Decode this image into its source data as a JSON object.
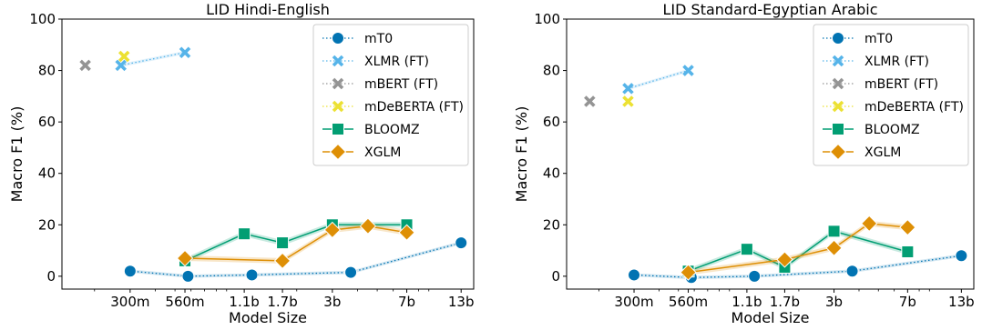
{
  "chart_data": [
    {
      "type": "line",
      "title": "LID Hindi-English",
      "xlabel": "Model Size",
      "ylabel": "Macro F1 (%)",
      "ylim": [
        0,
        100
      ],
      "yticks": [
        0,
        20,
        40,
        60,
        80,
        100
      ],
      "xticks": [
        "300m",
        "560m",
        "1.1b",
        "1.7b",
        "3b",
        "7b",
        "13b"
      ],
      "x_scale": "log",
      "grid": false,
      "legend_position": "top-right",
      "series": [
        {
          "name": "mT0",
          "color": "#0173b2",
          "marker": "circle",
          "style": "dotted",
          "points": [
            {
              "x": "300m",
              "y": 2
            },
            {
              "x": "580m",
              "y": 0
            },
            {
              "x": "1.2b",
              "y": 0.5
            },
            {
              "x": "3.7b",
              "y": 1.5
            },
            {
              "x": "13b",
              "y": 13
            }
          ]
        },
        {
          "name": "XLMR (FT)",
          "color": "#56b4e9",
          "marker": "x",
          "style": "dotted",
          "points": [
            {
              "x": "270m",
              "y": 82
            },
            {
              "x": "560m",
              "y": 87
            }
          ]
        },
        {
          "name": "mBERT (FT)",
          "color": "#949494",
          "marker": "x",
          "style": "none",
          "points": [
            {
              "x": "180m",
              "y": 82
            }
          ]
        },
        {
          "name": "mDeBERTA (FT)",
          "color": "#ece133",
          "marker": "x",
          "style": "none",
          "points": [
            {
              "x": "280m",
              "y": 85.5
            }
          ]
        },
        {
          "name": "BLOOMZ",
          "color": "#029e73",
          "marker": "square",
          "style": "solid",
          "points": [
            {
              "x": "560m",
              "y": 6
            },
            {
              "x": "1.1b",
              "y": 16.5
            },
            {
              "x": "1.7b",
              "y": 13
            },
            {
              "x": "3b",
              "y": 20
            },
            {
              "x": "7b",
              "y": 20
            }
          ]
        },
        {
          "name": "XGLM",
          "color": "#de8f05",
          "marker": "diamond",
          "style": "solid",
          "points": [
            {
              "x": "560m",
              "y": 7
            },
            {
              "x": "1.7b",
              "y": 6
            },
            {
              "x": "3b",
              "y": 18
            },
            {
              "x": "4.5b",
              "y": 19.5
            },
            {
              "x": "7b",
              "y": 17
            }
          ]
        }
      ]
    },
    {
      "type": "line",
      "title": "LID Standard-Egyptian Arabic",
      "xlabel": "Model Size",
      "ylabel": "Macro F1 (%)",
      "ylim": [
        0,
        100
      ],
      "yticks": [
        0,
        20,
        40,
        60,
        80,
        100
      ],
      "xticks": [
        "300m",
        "560m",
        "1.1b",
        "1.7b",
        "3b",
        "7b",
        "13b"
      ],
      "x_scale": "log",
      "grid": false,
      "legend_position": "top-right",
      "series": [
        {
          "name": "mT0",
          "color": "#0173b2",
          "marker": "circle",
          "style": "dotted",
          "points": [
            {
              "x": "300m",
              "y": 0.5
            },
            {
              "x": "580m",
              "y": -0.5
            },
            {
              "x": "1.2b",
              "y": 0
            },
            {
              "x": "3.7b",
              "y": 2
            },
            {
              "x": "13b",
              "y": 8
            }
          ]
        },
        {
          "name": "XLMR (FT)",
          "color": "#56b4e9",
          "marker": "x",
          "style": "dotted",
          "points": [
            {
              "x": "280m",
              "y": 73
            },
            {
              "x": "560m",
              "y": 80
            }
          ]
        },
        {
          "name": "mBERT (FT)",
          "color": "#949494",
          "marker": "x",
          "style": "none",
          "points": [
            {
              "x": "180m",
              "y": 68
            }
          ]
        },
        {
          "name": "mDeBERTA (FT)",
          "color": "#ece133",
          "marker": "x",
          "style": "none",
          "points": [
            {
              "x": "280m",
              "y": 68
            }
          ]
        },
        {
          "name": "BLOOMZ",
          "color": "#029e73",
          "marker": "square",
          "style": "solid",
          "points": [
            {
              "x": "560m",
              "y": 2
            },
            {
              "x": "1.1b",
              "y": 10.5
            },
            {
              "x": "1.7b",
              "y": 3.5
            },
            {
              "x": "3b",
              "y": 17.5
            },
            {
              "x": "7b",
              "y": 9.5
            }
          ]
        },
        {
          "name": "XGLM",
          "color": "#de8f05",
          "marker": "diamond",
          "style": "solid",
          "points": [
            {
              "x": "560m",
              "y": 1.5
            },
            {
              "x": "1.7b",
              "y": 6.5
            },
            {
              "x": "3b",
              "y": 11
            },
            {
              "x": "4.5b",
              "y": 20.5
            },
            {
              "x": "7b",
              "y": 19
            }
          ]
        }
      ]
    }
  ]
}
